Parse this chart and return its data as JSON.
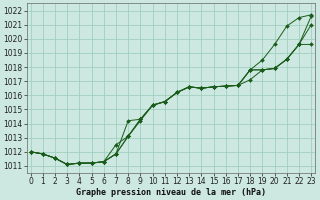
{
  "xlabel": "Graphe pression niveau de la mer (hPa)",
  "bg_color": "#cce8e0",
  "line_color": "#1a5c1a",
  "marker_color": "#1a5c1a",
  "grid_color": "#99ccbb",
  "ylim": [
    1010.5,
    1022.5
  ],
  "xlim": [
    -0.3,
    23.3
  ],
  "yticks": [
    1011,
    1012,
    1013,
    1014,
    1015,
    1016,
    1017,
    1018,
    1019,
    1020,
    1021,
    1022
  ],
  "xticks": [
    0,
    1,
    2,
    3,
    4,
    5,
    6,
    7,
    8,
    9,
    10,
    11,
    12,
    13,
    14,
    15,
    16,
    17,
    18,
    19,
    20,
    21,
    22,
    23
  ],
  "series": [
    [
      1012.0,
      1011.85,
      1011.55,
      1011.1,
      1011.2,
      1011.2,
      1011.3,
      1011.85,
      1013.1,
      1014.2,
      1015.3,
      1015.55,
      1016.2,
      1016.6,
      1016.5,
      1016.6,
      1016.65,
      1016.7,
      1017.8,
      1018.5,
      1019.6,
      1020.9,
      1021.5,
      1021.7
    ],
    [
      1012.0,
      1011.85,
      1011.55,
      1011.1,
      1011.2,
      1011.2,
      1011.3,
      1011.85,
      1014.2,
      1014.3,
      1015.3,
      1015.55,
      1016.2,
      1016.6,
      1016.5,
      1016.6,
      1016.65,
      1016.7,
      1017.8,
      1017.8,
      1017.9,
      1018.55,
      1019.6,
      1021.6
    ],
    [
      1012.0,
      1011.85,
      1011.55,
      1011.1,
      1011.2,
      1011.2,
      1011.3,
      1011.85,
      1013.1,
      1014.3,
      1015.3,
      1015.55,
      1016.2,
      1016.6,
      1016.5,
      1016.6,
      1016.65,
      1016.7,
      1017.8,
      1017.8,
      1017.9,
      1018.55,
      1019.6,
      1019.6
    ],
    [
      1012.0,
      1011.85,
      1011.55,
      1011.1,
      1011.2,
      1011.2,
      1011.3,
      1012.5,
      1013.1,
      1014.3,
      1015.3,
      1015.55,
      1016.2,
      1016.6,
      1016.5,
      1016.6,
      1016.65,
      1016.7,
      1017.1,
      1017.8,
      1017.9,
      1018.55,
      1019.6,
      1021.0
    ]
  ],
  "xlabel_fontsize": 6.0,
  "tick_fontsize": 5.5
}
